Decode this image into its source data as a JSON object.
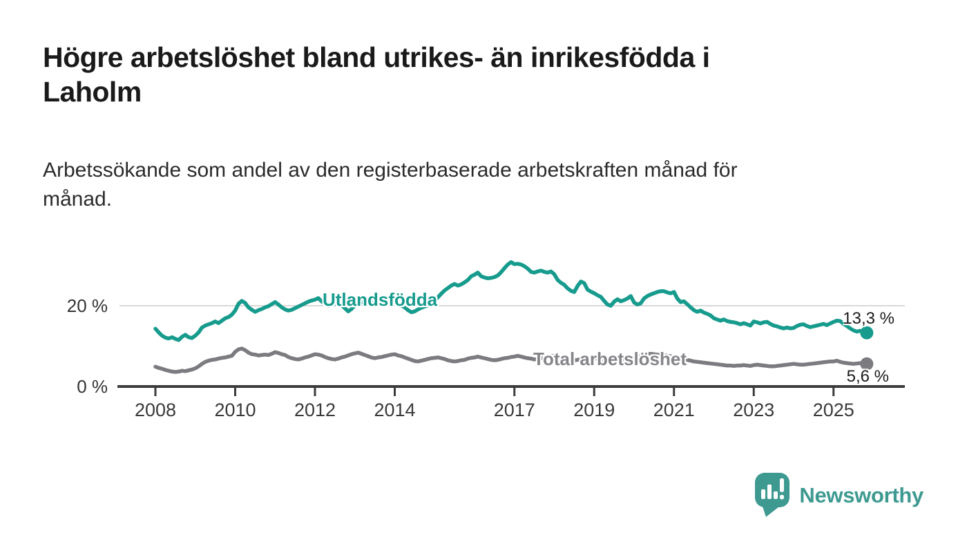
{
  "header": {
    "title": "Högre arbetslöshet bland utrikes- än inrikesfödda i\nLaholm",
    "subtitle": "Arbetssökande som andel av den registerbaserade arbetskraften månad för\nmånad."
  },
  "chart_data": {
    "type": "line",
    "title": "Högre arbetslöshet bland utrikes- än inrikesfödda i\nLaholm",
    "subtitle": "Arbetssökande som andel av den registerbaserade arbetskraften månad för\nmånad.",
    "x_unit": "year, monthly resolution",
    "xlim": [
      2007.6,
      2026.4
    ],
    "ylim": [
      0,
      33.5
    ],
    "grid": "horizontal gridline at 20 % only",
    "legend_position": "inline labels next to lines",
    "x_ticks": [
      2008,
      2010,
      2012,
      2014,
      2017,
      2019,
      2021,
      2023,
      2025
    ],
    "y_ticks": [
      {
        "value": 0,
        "label": "0 %"
      },
      {
        "value": 20,
        "label": "20 %"
      }
    ],
    "series": [
      {
        "name": "Utlandsfödda",
        "color": "#169b8d",
        "end_label": "13,3 %",
        "end_value": 13.3,
        "start_year": 2008,
        "points_per_year": 12,
        "values": [
          14.3,
          13.4,
          12.6,
          12.1,
          11.9,
          12.2,
          11.8,
          11.5,
          12.3,
          12.8,
          12.2,
          12.0,
          12.6,
          13.4,
          14.6,
          15.1,
          15.4,
          15.7,
          16.1,
          15.7,
          16.3,
          16.9,
          17.2,
          17.8,
          18.8,
          20.5,
          21.2,
          20.7,
          19.6,
          19.0,
          18.5,
          18.9,
          19.2,
          19.6,
          19.9,
          20.4,
          20.9,
          20.3,
          19.6,
          19.1,
          18.8,
          19.0,
          19.4,
          19.8,
          20.2,
          20.6,
          21.0,
          21.3,
          21.5,
          21.9,
          21.1,
          20.5,
          20.0,
          20.2,
          20.4,
          20.7,
          20.1,
          19.4,
          18.6,
          19.2,
          20.1,
          20.7,
          20.9,
          20.6,
          20.3,
          20.6,
          20.8,
          21.1,
          21.3,
          20.9,
          20.5,
          20.7,
          20.9,
          20.4,
          20.0,
          19.6,
          18.9,
          18.4,
          18.6,
          19.1,
          19.5,
          19.8,
          20.1,
          20.6,
          21.3,
          22.1,
          23.0,
          23.8,
          24.4,
          25.0,
          25.4,
          25.0,
          25.3,
          25.8,
          26.4,
          27.3,
          27.7,
          28.2,
          27.3,
          27.0,
          26.8,
          26.9,
          27.1,
          27.5,
          28.3,
          29.3,
          30.2,
          30.8,
          30.3,
          30.4,
          30.2,
          29.8,
          29.2,
          28.4,
          28.2,
          28.5,
          28.7,
          28.4,
          28.2,
          28.5,
          27.8,
          26.4,
          25.7,
          25.2,
          24.3,
          23.7,
          23.4,
          24.9,
          26.0,
          25.6,
          24.0,
          23.5,
          23.1,
          22.6,
          22.2,
          21.2,
          20.3,
          20.0,
          21.0,
          21.6,
          21.1,
          21.4,
          21.8,
          22.4,
          20.8,
          20.3,
          20.6,
          21.8,
          22.4,
          22.8,
          23.1,
          23.4,
          23.6,
          23.6,
          23.3,
          23.1,
          23.4,
          21.8,
          20.9,
          21.1,
          20.4,
          19.6,
          18.9,
          18.5,
          18.8,
          18.3,
          18.0,
          17.6,
          16.9,
          16.6,
          16.3,
          16.6,
          16.2,
          16.0,
          15.9,
          15.7,
          15.4,
          15.7,
          15.4,
          15.1,
          16.1,
          15.9,
          15.6,
          15.9,
          16.0,
          15.5,
          15.1,
          14.9,
          14.6,
          14.4,
          14.6,
          14.4,
          14.5,
          15.0,
          15.3,
          15.4,
          15.0,
          14.7,
          14.9,
          15.1,
          15.3,
          15.5,
          15.2,
          15.6,
          16.0,
          16.3,
          16.2,
          15.5,
          15.0,
          14.4,
          13.9,
          13.6,
          13.8,
          13.5,
          13.3
        ]
      },
      {
        "name": "Total arbetslöshet",
        "color": "#7b7b80",
        "label_color": "#85858a",
        "end_label": "5,6 %",
        "end_value": 5.6,
        "start_year": 2008,
        "points_per_year": 12,
        "values": [
          4.9,
          4.6,
          4.4,
          4.1,
          3.9,
          3.7,
          3.6,
          3.7,
          3.9,
          3.8,
          4.0,
          4.2,
          4.5,
          5.0,
          5.6,
          6.1,
          6.4,
          6.6,
          6.7,
          6.9,
          7.1,
          7.2,
          7.4,
          7.6,
          8.6,
          9.2,
          9.4,
          9.0,
          8.4,
          8.0,
          7.9,
          7.7,
          7.8,
          7.9,
          7.8,
          8.1,
          8.5,
          8.3,
          8.0,
          7.8,
          7.3,
          7.0,
          6.8,
          6.7,
          6.9,
          7.2,
          7.4,
          7.7,
          8.0,
          7.9,
          7.7,
          7.3,
          7.0,
          6.8,
          6.7,
          6.9,
          7.2,
          7.4,
          7.7,
          8.0,
          8.2,
          8.4,
          8.1,
          7.8,
          7.5,
          7.2,
          7.0,
          7.2,
          7.3,
          7.5,
          7.7,
          7.9,
          8.0,
          7.7,
          7.5,
          7.2,
          6.9,
          6.6,
          6.3,
          6.2,
          6.4,
          6.6,
          6.8,
          7.0,
          7.1,
          7.2,
          7.0,
          6.8,
          6.5,
          6.3,
          6.2,
          6.3,
          6.5,
          6.6,
          6.9,
          7.1,
          7.2,
          7.4,
          7.2,
          7.0,
          6.8,
          6.6,
          6.5,
          6.6,
          6.8,
          7.0,
          7.1,
          7.3,
          7.4,
          7.6,
          7.4,
          7.2,
          7.0,
          6.9,
          6.7,
          6.8,
          7.0,
          7.1,
          7.3,
          7.5,
          7.6,
          7.4,
          7.2,
          7.0,
          6.8,
          6.6,
          6.5,
          6.6,
          6.8,
          6.9,
          7.0,
          7.1,
          7.0,
          6.9,
          6.7,
          6.5,
          6.4,
          6.3,
          6.4,
          6.5,
          6.6,
          6.7,
          6.8,
          6.9,
          7.0,
          7.2,
          7.5,
          7.8,
          8.0,
          8.1,
          8.0,
          7.9,
          7.8,
          7.7,
          7.6,
          7.5,
          7.4,
          7.2,
          7.0,
          6.8,
          6.6,
          6.4,
          6.2,
          6.1,
          6.0,
          5.9,
          5.8,
          5.7,
          5.6,
          5.5,
          5.4,
          5.3,
          5.2,
          5.2,
          5.1,
          5.2,
          5.2,
          5.3,
          5.2,
          5.1,
          5.3,
          5.4,
          5.3,
          5.2,
          5.1,
          5.0,
          5.0,
          5.1,
          5.2,
          5.3,
          5.4,
          5.5,
          5.6,
          5.5,
          5.4,
          5.4,
          5.5,
          5.6,
          5.7,
          5.8,
          5.9,
          6.0,
          6.1,
          6.2,
          6.2,
          6.4,
          6.1,
          5.9,
          5.8,
          5.7,
          5.6,
          5.7,
          5.8,
          5.7,
          5.6
        ]
      }
    ]
  },
  "colors": {
    "background": "#ffffff",
    "title_text": "#1a1a1a",
    "subtitle_text": "#2b2b2b",
    "axis": "#3b3b3b",
    "axis_tick_label": "#3a3a3a",
    "gridline": "#d9d9d9",
    "series_foreign_born": "#169b8d",
    "series_total": "#7b7b80",
    "brand_teal": "#3e9a91"
  },
  "footer": {
    "brand": "Newsworthy"
  }
}
